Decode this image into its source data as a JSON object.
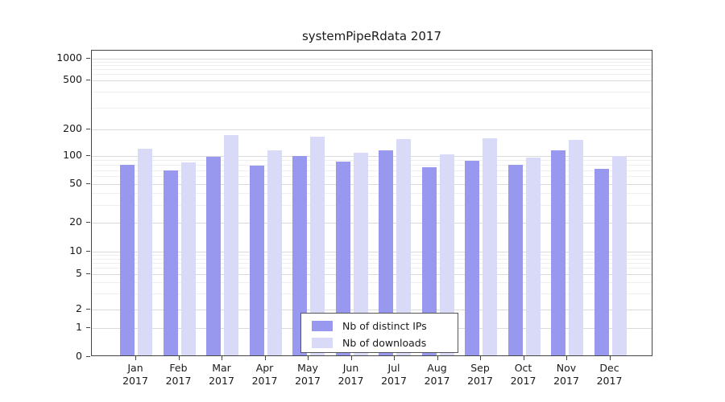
{
  "chart_data": {
    "type": "bar",
    "title": "systemPipeRdata 2017",
    "categories": [
      "Jan",
      "Feb",
      "Mar",
      "Apr",
      "May",
      "Jun",
      "Jul",
      "Aug",
      "Sep",
      "Oct",
      "Nov",
      "Dec"
    ],
    "year_label": "2017",
    "series": [
      {
        "name": "Nb of distinct IPs",
        "color": "#9898ee",
        "values": [
          78,
          67,
          95,
          76,
          97,
          83,
          110,
          73,
          85,
          77,
          110,
          70
        ]
      },
      {
        "name": "Nb of downloads",
        "color": "#d9d9f8",
        "values": [
          115,
          82,
          165,
          112,
          158,
          105,
          150,
          100,
          152,
          92,
          145,
          97
        ]
      }
    ],
    "yticks": [
      0,
      1,
      2,
      5,
      10,
      20,
      50,
      100,
      200,
      500,
      1000
    ],
    "yscale": "log",
    "ylim": [
      0,
      1000
    ],
    "grid": true,
    "legend_position": "bottom-center-inside",
    "xlabel": "",
    "ylabel": ""
  }
}
